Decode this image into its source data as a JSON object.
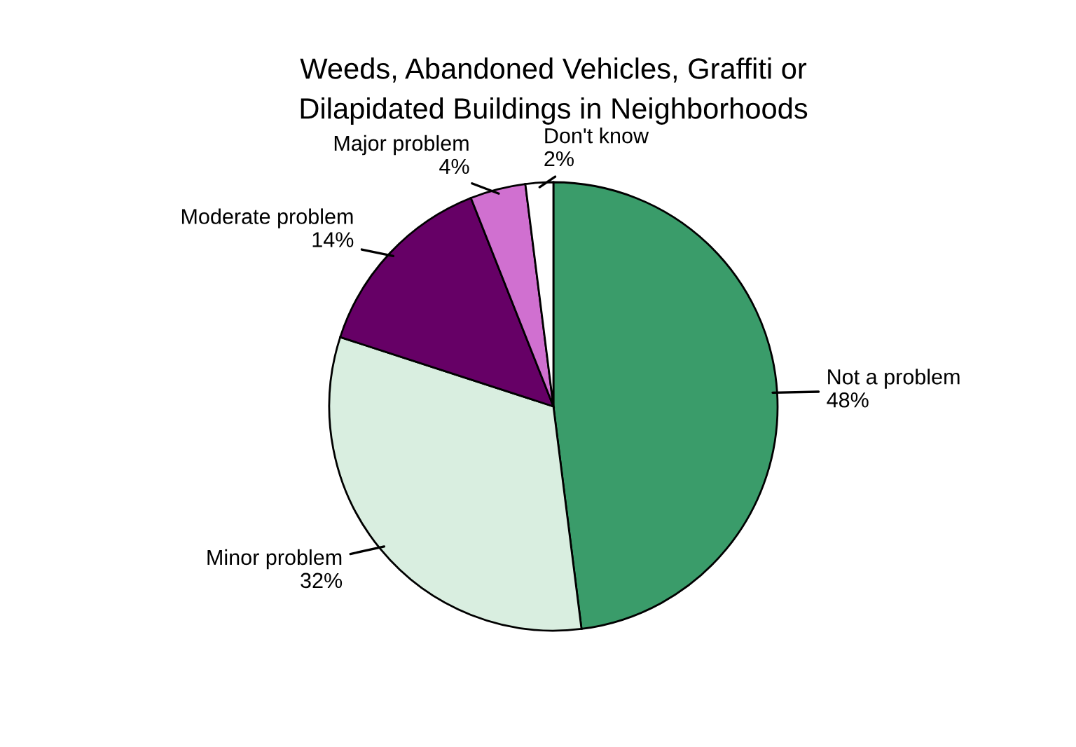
{
  "chart_data": {
    "type": "pie",
    "title": "Weeds, Abandoned Vehicles, Graffiti or\nDilapidated Buildings in Neighborhoods",
    "categories": [
      "Not a problem",
      "Minor problem",
      "Moderate problem",
      "Major problem",
      "Don't know"
    ],
    "values": [
      48,
      32,
      14,
      4,
      2
    ],
    "colors": [
      "#3a9c6a",
      "#d9eee0",
      "#660066",
      "#d070d0",
      "#ffffff"
    ],
    "value_labels": [
      "48%",
      "32%",
      "14%",
      "4%",
      "2%"
    ],
    "legend": false
  }
}
